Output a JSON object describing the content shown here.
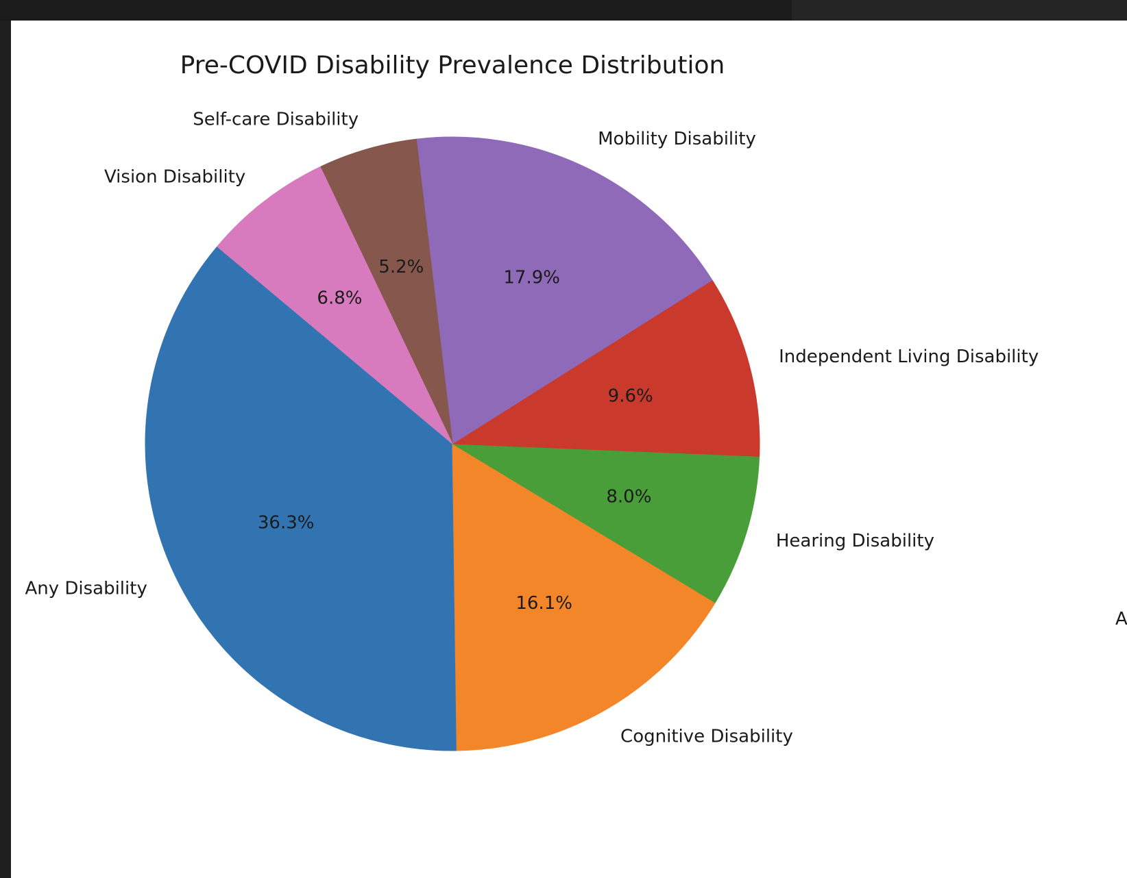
{
  "chart_data": {
    "type": "pie",
    "title": "Pre-COVID Disability Prevalence Distribution",
    "autopct_format": "%.1f%%",
    "start_angle_deg": 140,
    "direction": "counterclockwise",
    "slices": [
      {
        "label": "Any Disability",
        "value": 36.3,
        "pct_label": "36.3%",
        "color": "#3274b1"
      },
      {
        "label": "Cognitive Disability",
        "value": 16.1,
        "pct_label": "16.1%",
        "color": "#f4862a"
      },
      {
        "label": "Hearing Disability",
        "value": 8.0,
        "pct_label": "8.0%",
        "color": "#4a9e3a"
      },
      {
        "label": "Independent Living Disability",
        "value": 9.6,
        "pct_label": "9.6%",
        "color": "#c93a2d"
      },
      {
        "label": "Mobility Disability",
        "value": 17.9,
        "pct_label": "17.9%",
        "color": "#8e6ab8"
      },
      {
        "label": "Self-care Disability",
        "value": 5.2,
        "pct_label": "5.2%",
        "color": "#85574d"
      },
      {
        "label": "Vision Disability",
        "value": 6.8,
        "pct_label": "6.8%",
        "color": "#d87bbe"
      }
    ],
    "clipped_edge_text": "A"
  }
}
